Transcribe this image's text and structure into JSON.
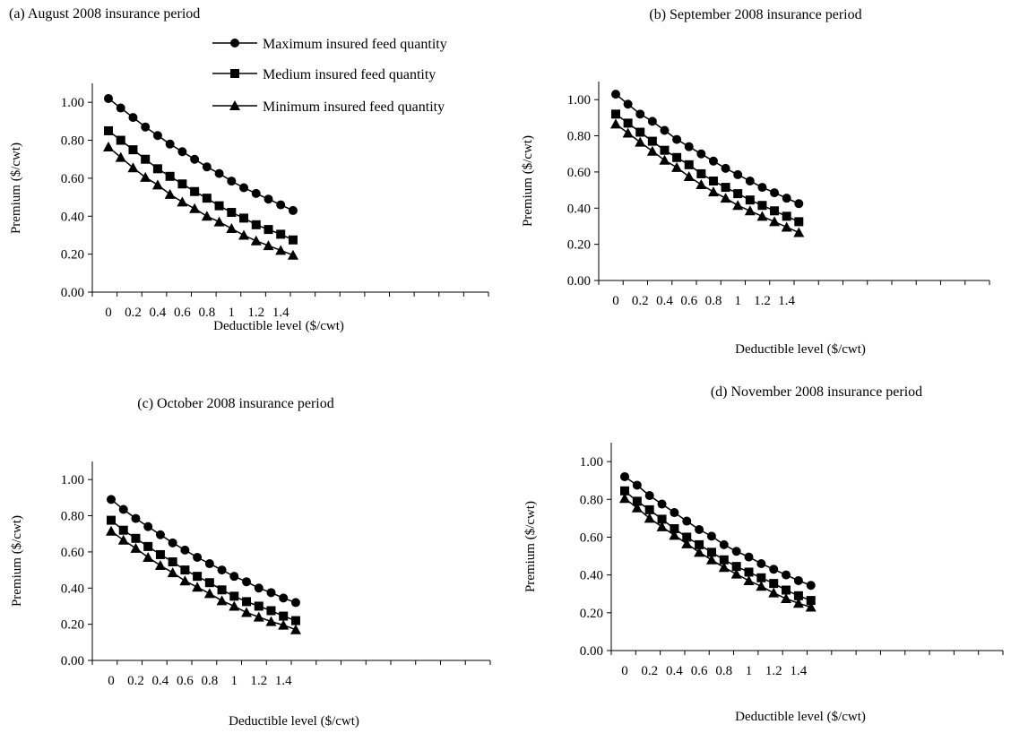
{
  "legend": {
    "items": [
      {
        "label": "Maximum insured feed quantity",
        "marker": "circle"
      },
      {
        "label": "Medium insured feed quantity",
        "marker": "square"
      },
      {
        "label": "Minimum insured feed quantity",
        "marker": "triangle"
      }
    ]
  },
  "chart_data": [
    {
      "type": "line",
      "title": "(a) August 2008 insurance period",
      "xlabel": "Deductible level ($/cwt)",
      "ylabel": "Premium ($/cwt)",
      "x": [
        0,
        0.1,
        0.2,
        0.3,
        0.4,
        0.5,
        0.6,
        0.7,
        0.8,
        0.9,
        1.0,
        1.1,
        1.2,
        1.3,
        1.4,
        1.5
      ],
      "xticks": [
        "0",
        "0.2",
        "0.4",
        "0.6",
        "0.8",
        "1",
        "1.2",
        "1.4"
      ],
      "yticks": [
        "0.00",
        "0.20",
        "0.40",
        "0.60",
        "0.80",
        "1.00"
      ],
      "xlim": [
        0,
        1.5
      ],
      "ylim": [
        0,
        1.1
      ],
      "grid": false,
      "series": [
        {
          "name": "Maximum insured feed quantity",
          "marker": "circle",
          "values": [
            1.02,
            0.97,
            0.92,
            0.87,
            0.825,
            0.78,
            0.74,
            0.7,
            0.66,
            0.625,
            0.585,
            0.55,
            0.52,
            0.49,
            0.46,
            0.43
          ]
        },
        {
          "name": "Medium insured feed quantity",
          "marker": "square",
          "values": [
            0.85,
            0.8,
            0.75,
            0.7,
            0.65,
            0.61,
            0.57,
            0.53,
            0.495,
            0.455,
            0.42,
            0.39,
            0.355,
            0.33,
            0.305,
            0.275
          ]
        },
        {
          "name": "Minimum insured feed quantity",
          "marker": "triangle",
          "values": [
            0.765,
            0.71,
            0.655,
            0.605,
            0.565,
            0.515,
            0.475,
            0.44,
            0.4,
            0.37,
            0.335,
            0.3,
            0.27,
            0.245,
            0.22,
            0.195
          ]
        }
      ]
    },
    {
      "type": "line",
      "title": "(b) September 2008 insurance period",
      "xlabel": "Deductible level ($/cwt)",
      "ylabel": "Premium ($/cwt)",
      "x": [
        0,
        0.1,
        0.2,
        0.3,
        0.4,
        0.5,
        0.6,
        0.7,
        0.8,
        0.9,
        1.0,
        1.1,
        1.2,
        1.3,
        1.4,
        1.5
      ],
      "xticks": [
        "0",
        "0.2",
        "0.4",
        "0.6",
        "0.8",
        "1",
        "1.2",
        "1.4"
      ],
      "yticks": [
        "0.00",
        "0.20",
        "0.40",
        "0.60",
        "0.80",
        "1.00"
      ],
      "xlim": [
        0,
        1.5
      ],
      "ylim": [
        0,
        1.1
      ],
      "grid": false,
      "series": [
        {
          "name": "Maximum insured feed quantity",
          "marker": "circle",
          "values": [
            1.03,
            0.975,
            0.92,
            0.88,
            0.83,
            0.78,
            0.74,
            0.7,
            0.66,
            0.62,
            0.585,
            0.55,
            0.515,
            0.485,
            0.455,
            0.425
          ]
        },
        {
          "name": "Medium insured feed quantity",
          "marker": "square",
          "values": [
            0.92,
            0.87,
            0.82,
            0.77,
            0.72,
            0.68,
            0.64,
            0.59,
            0.55,
            0.515,
            0.48,
            0.445,
            0.415,
            0.385,
            0.355,
            0.325
          ]
        },
        {
          "name": "Minimum insured feed quantity",
          "marker": "triangle",
          "values": [
            0.865,
            0.815,
            0.765,
            0.715,
            0.665,
            0.625,
            0.575,
            0.53,
            0.49,
            0.455,
            0.415,
            0.385,
            0.355,
            0.325,
            0.295,
            0.265
          ]
        }
      ]
    },
    {
      "type": "line",
      "title": "(c) October 2008 insurance period",
      "xlabel": "Deductible level ($/cwt)",
      "ylabel": "Premium ($/cwt)",
      "x": [
        0,
        0.1,
        0.2,
        0.3,
        0.4,
        0.5,
        0.6,
        0.7,
        0.8,
        0.9,
        1.0,
        1.1,
        1.2,
        1.3,
        1.4,
        1.5
      ],
      "xticks": [
        "0",
        "0.2",
        "0.4",
        "0.6",
        "0.8",
        "1",
        "1.2",
        "1.4"
      ],
      "yticks": [
        "0.00",
        "0.20",
        "0.40",
        "0.60",
        "0.80",
        "1.00"
      ],
      "xlim": [
        0,
        1.5
      ],
      "ylim": [
        0,
        1.1
      ],
      "grid": false,
      "series": [
        {
          "name": "Maximum insured feed quantity",
          "marker": "circle",
          "values": [
            0.89,
            0.835,
            0.785,
            0.74,
            0.695,
            0.65,
            0.61,
            0.57,
            0.535,
            0.5,
            0.465,
            0.435,
            0.4,
            0.375,
            0.345,
            0.32
          ]
        },
        {
          "name": "Medium insured feed quantity",
          "marker": "square",
          "values": [
            0.775,
            0.72,
            0.675,
            0.63,
            0.585,
            0.545,
            0.5,
            0.465,
            0.43,
            0.39,
            0.355,
            0.325,
            0.3,
            0.275,
            0.245,
            0.22
          ]
        },
        {
          "name": "Minimum insured feed quantity",
          "marker": "triangle",
          "values": [
            0.715,
            0.665,
            0.62,
            0.57,
            0.525,
            0.485,
            0.44,
            0.405,
            0.37,
            0.33,
            0.3,
            0.265,
            0.24,
            0.215,
            0.195,
            0.17
          ]
        }
      ]
    },
    {
      "type": "line",
      "title": "(d) November 2008 insurance period",
      "xlabel": "Deductible level ($/cwt)",
      "ylabel": "Premium ($/cwt)",
      "x": [
        0,
        0.1,
        0.2,
        0.3,
        0.4,
        0.5,
        0.6,
        0.7,
        0.8,
        0.9,
        1.0,
        1.1,
        1.2,
        1.3,
        1.4,
        1.5
      ],
      "xticks": [
        "0",
        "0.2",
        "0.4",
        "0.6",
        "0.8",
        "1",
        "1.2",
        "1.4"
      ],
      "yticks": [
        "0.00",
        "0.20",
        "0.40",
        "0.60",
        "0.80",
        "1.00"
      ],
      "xlim": [
        0,
        1.5
      ],
      "ylim": [
        0,
        1.1
      ],
      "grid": false,
      "series": [
        {
          "name": "Maximum insured feed quantity",
          "marker": "circle",
          "values": [
            0.92,
            0.875,
            0.82,
            0.775,
            0.73,
            0.685,
            0.64,
            0.605,
            0.56,
            0.525,
            0.495,
            0.46,
            0.43,
            0.4,
            0.37,
            0.345
          ]
        },
        {
          "name": "Medium insured feed quantity",
          "marker": "square",
          "values": [
            0.845,
            0.79,
            0.745,
            0.695,
            0.645,
            0.6,
            0.56,
            0.52,
            0.48,
            0.445,
            0.415,
            0.385,
            0.355,
            0.32,
            0.29,
            0.265
          ]
        },
        {
          "name": "Minimum insured feed quantity",
          "marker": "triangle",
          "values": [
            0.805,
            0.755,
            0.7,
            0.655,
            0.61,
            0.565,
            0.52,
            0.48,
            0.44,
            0.405,
            0.37,
            0.34,
            0.305,
            0.275,
            0.25,
            0.23
          ]
        }
      ]
    }
  ]
}
